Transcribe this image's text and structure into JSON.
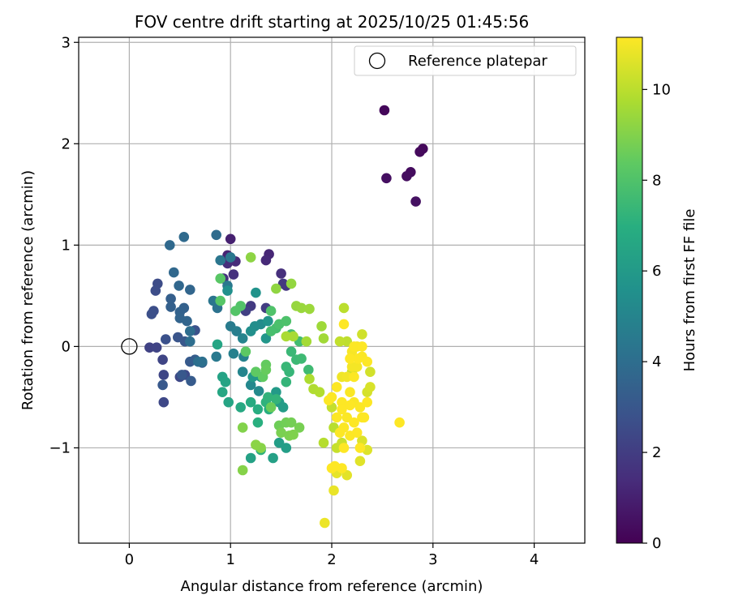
{
  "chart_data": {
    "type": "scatter",
    "title": "FOV centre drift starting at 2025/10/25 01:45:56",
    "xlabel": "Angular distance from reference (arcmin)",
    "ylabel": "Rotation from reference (arcmin)",
    "xlim": [
      -0.5,
      4.5
    ],
    "ylim": [
      -1.94,
      3.05
    ],
    "xticks": [
      0,
      1,
      2,
      3,
      4
    ],
    "yticks": [
      -1,
      0,
      1,
      2,
      3
    ],
    "xtick_labels": [
      "0",
      "1",
      "2",
      "3",
      "4"
    ],
    "ytick_labels": [
      "−1",
      "0",
      "1",
      "2",
      "3"
    ],
    "grid": true,
    "legend": {
      "placement": "top-right",
      "entries": [
        "Reference platepar"
      ]
    },
    "reference_point": {
      "x": 0,
      "y": 0,
      "label": "Reference platepar"
    },
    "colorbar": {
      "label": "Hours from first FF file",
      "min": 0,
      "max": 11.15,
      "ticks": [
        0,
        2,
        4,
        6,
        8,
        10
      ],
      "tick_labels": [
        "0",
        "2",
        "4",
        "6",
        "8",
        "10"
      ],
      "colormap": "viridis"
    },
    "series": [
      {
        "name": "FOV centre drift",
        "points": [
          [
            2.52,
            2.33,
            0.2
          ],
          [
            2.9,
            1.95,
            0.25
          ],
          [
            2.87,
            1.92,
            0.3
          ],
          [
            2.78,
            1.72,
            0.35
          ],
          [
            2.74,
            1.68,
            0.4
          ],
          [
            2.54,
            1.66,
            0.45
          ],
          [
            2.83,
            1.43,
            0.5
          ],
          [
            1.0,
            1.06,
            1.0
          ],
          [
            0.97,
            0.9,
            1.1
          ],
          [
            1.38,
            0.91,
            1.2
          ],
          [
            1.35,
            0.85,
            1.3
          ],
          [
            1.05,
            0.84,
            1.35
          ],
          [
            0.97,
            0.82,
            1.4
          ],
          [
            1.5,
            0.72,
            1.5
          ],
          [
            1.03,
            0.71,
            1.55
          ],
          [
            0.93,
            0.67,
            1.6
          ],
          [
            1.55,
            0.6,
            1.7
          ],
          [
            1.52,
            0.62,
            1.8
          ],
          [
            1.2,
            0.4,
            1.9
          ],
          [
            1.35,
            0.38,
            2.0
          ],
          [
            1.15,
            0.35,
            2.1
          ],
          [
            0.2,
            -0.01,
            2.2
          ],
          [
            0.27,
            -0.01,
            2.25
          ],
          [
            0.33,
            -0.13,
            2.3
          ],
          [
            0.34,
            -0.28,
            2.35
          ],
          [
            0.34,
            -0.55,
            2.4
          ],
          [
            0.5,
            -0.3,
            2.45
          ],
          [
            0.55,
            -0.28,
            2.5
          ],
          [
            0.28,
            0.62,
            2.55
          ],
          [
            0.26,
            0.55,
            2.6
          ],
          [
            0.24,
            0.35,
            2.65
          ],
          [
            0.22,
            0.32,
            2.7
          ],
          [
            0.36,
            0.07,
            2.75
          ],
          [
            0.65,
            0.16,
            2.8
          ],
          [
            0.48,
            0.09,
            2.9
          ],
          [
            0.55,
            0.05,
            3.0
          ],
          [
            0.52,
            -0.28,
            3.05
          ],
          [
            0.33,
            -0.38,
            3.1
          ],
          [
            0.6,
            -0.15,
            3.15
          ],
          [
            0.61,
            -0.34,
            3.2
          ],
          [
            0.65,
            -0.13,
            3.25
          ],
          [
            0.72,
            -0.16,
            3.3
          ],
          [
            0.41,
            0.47,
            3.35
          ],
          [
            0.41,
            0.39,
            3.4
          ],
          [
            0.54,
            0.38,
            3.45
          ],
          [
            0.5,
            0.34,
            3.5
          ],
          [
            0.5,
            0.28,
            3.55
          ],
          [
            0.57,
            0.25,
            3.6
          ],
          [
            0.6,
            0.56,
            3.65
          ],
          [
            0.49,
            0.6,
            3.7
          ],
          [
            0.44,
            0.73,
            3.75
          ],
          [
            0.4,
            1.0,
            3.8
          ],
          [
            0.54,
            1.08,
            3.85
          ],
          [
            0.86,
            1.1,
            3.9
          ],
          [
            0.6,
            0.15,
            3.95
          ],
          [
            0.6,
            0.05,
            4.0
          ],
          [
            0.68,
            -0.15,
            4.05
          ],
          [
            0.72,
            -0.15,
            4.1
          ],
          [
            0.87,
            0.38,
            4.2
          ],
          [
            0.83,
            0.45,
            4.3
          ],
          [
            0.9,
            0.85,
            4.35
          ],
          [
            1.0,
            0.88,
            4.4
          ],
          [
            0.97,
            0.6,
            4.45
          ],
          [
            0.86,
            -0.1,
            4.5
          ],
          [
            1.0,
            0.2,
            4.6
          ],
          [
            1.06,
            0.15,
            4.7
          ],
          [
            1.03,
            -0.07,
            4.8
          ],
          [
            1.13,
            -0.1,
            4.9
          ],
          [
            1.12,
            0.08,
            5.0
          ],
          [
            1.12,
            -0.25,
            5.05
          ],
          [
            1.2,
            -0.38,
            5.15
          ],
          [
            1.28,
            -0.44,
            5.25
          ],
          [
            1.3,
            0.22,
            5.35
          ],
          [
            1.24,
            0.2,
            5.45
          ],
          [
            1.2,
            0.15,
            5.5
          ],
          [
            0.97,
            0.55,
            5.55
          ],
          [
            1.25,
            0.53,
            5.65
          ],
          [
            1.37,
            0.25,
            5.7
          ],
          [
            1.35,
            0.08,
            5.8
          ],
          [
            1.3,
            -0.3,
            5.9
          ],
          [
            1.22,
            -0.3,
            5.95
          ],
          [
            1.45,
            -0.45,
            6.0
          ],
          [
            1.48,
            -0.55,
            6.05
          ],
          [
            1.52,
            -0.6,
            6.1
          ],
          [
            1.48,
            -0.95,
            6.15
          ],
          [
            1.55,
            -1.0,
            6.2
          ],
          [
            1.42,
            -1.1,
            6.3
          ],
          [
            1.2,
            -1.1,
            6.35
          ],
          [
            0.92,
            -0.3,
            6.4
          ],
          [
            0.95,
            -0.35,
            6.45
          ],
          [
            0.98,
            -0.55,
            6.5
          ],
          [
            0.87,
            0.02,
            6.55
          ],
          [
            0.92,
            -0.45,
            6.6
          ],
          [
            1.1,
            -0.6,
            6.7
          ],
          [
            1.2,
            -0.55,
            6.8
          ],
          [
            1.27,
            -0.62,
            6.9
          ],
          [
            1.38,
            -0.62,
            6.95
          ],
          [
            1.27,
            -0.75,
            7.0
          ],
          [
            1.3,
            -1.02,
            7.1
          ],
          [
            1.35,
            -0.55,
            7.15
          ],
          [
            1.37,
            -0.5,
            7.2
          ],
          [
            1.45,
            -0.52,
            7.25
          ],
          [
            1.55,
            -0.35,
            7.3
          ],
          [
            1.58,
            -0.25,
            7.35
          ],
          [
            1.55,
            -0.2,
            7.4
          ],
          [
            1.6,
            -0.05,
            7.45
          ],
          [
            1.65,
            -0.13,
            7.5
          ],
          [
            1.7,
            -0.12,
            7.55
          ],
          [
            1.77,
            -0.23,
            7.6
          ],
          [
            1.68,
            0.05,
            7.65
          ],
          [
            1.6,
            0.12,
            7.7
          ],
          [
            1.45,
            0.18,
            7.75
          ],
          [
            1.4,
            0.15,
            7.8
          ],
          [
            1.48,
            0.22,
            7.9
          ],
          [
            1.55,
            0.25,
            7.95
          ],
          [
            1.4,
            0.35,
            8.0
          ],
          [
            1.1,
            0.4,
            8.05
          ],
          [
            1.05,
            0.35,
            8.1
          ],
          [
            0.9,
            0.45,
            8.15
          ],
          [
            0.9,
            0.67,
            8.2
          ],
          [
            1.15,
            -0.05,
            8.3
          ],
          [
            1.25,
            -0.25,
            8.35
          ],
          [
            1.32,
            -0.3,
            8.4
          ],
          [
            1.35,
            -0.18,
            8.45
          ],
          [
            1.35,
            -0.23,
            8.5
          ],
          [
            1.4,
            -0.6,
            8.6
          ],
          [
            1.48,
            -0.78,
            8.65
          ],
          [
            1.55,
            -0.75,
            8.7
          ],
          [
            1.6,
            -0.75,
            8.75
          ],
          [
            1.68,
            -0.8,
            8.8
          ],
          [
            1.5,
            -0.85,
            8.85
          ],
          [
            1.58,
            -0.88,
            8.9
          ],
          [
            1.62,
            -0.87,
            8.95
          ],
          [
            1.12,
            -0.8,
            9.0
          ],
          [
            1.12,
            -1.22,
            9.05
          ],
          [
            1.3,
            -1.0,
            9.1
          ],
          [
            1.25,
            -0.97,
            9.15
          ],
          [
            1.2,
            0.88,
            9.2
          ],
          [
            1.45,
            0.57,
            9.25
          ],
          [
            1.6,
            0.62,
            9.3
          ],
          [
            1.65,
            0.4,
            9.35
          ],
          [
            1.7,
            0.38,
            9.4
          ],
          [
            1.78,
            0.37,
            9.45
          ],
          [
            1.9,
            0.2,
            9.5
          ],
          [
            1.92,
            0.08,
            9.55
          ],
          [
            1.75,
            0.05,
            9.6
          ],
          [
            1.62,
            0.1,
            9.65
          ],
          [
            1.55,
            0.1,
            9.7
          ],
          [
            1.78,
            -0.32,
            9.75
          ],
          [
            1.82,
            -0.42,
            9.8
          ],
          [
            1.88,
            -0.45,
            9.85
          ],
          [
            1.92,
            -0.95,
            9.9
          ],
          [
            2.02,
            -0.8,
            9.95
          ],
          [
            2.12,
            0.38,
            10.0
          ],
          [
            2.15,
            0.05,
            10.05
          ],
          [
            2.08,
            0.05,
            10.1
          ],
          [
            2.0,
            -0.6,
            10.15
          ],
          [
            2.05,
            -1.0,
            10.2
          ],
          [
            2.1,
            -0.95,
            10.25
          ],
          [
            2.2,
            -0.25,
            10.3
          ],
          [
            2.3,
            0.12,
            10.35
          ],
          [
            2.38,
            -0.25,
            10.4
          ],
          [
            2.35,
            -0.45,
            10.45
          ],
          [
            2.38,
            -0.4,
            10.5
          ],
          [
            2.3,
            -0.93,
            10.55
          ],
          [
            2.35,
            -1.02,
            10.6
          ],
          [
            2.28,
            -1.13,
            10.65
          ],
          [
            2.15,
            -1.27,
            10.7
          ],
          [
            2.05,
            -1.25,
            10.75
          ],
          [
            2.02,
            -1.42,
            10.8
          ],
          [
            1.93,
            -1.74,
            10.85
          ],
          [
            2.1,
            -0.3,
            10.9
          ],
          [
            2.15,
            -0.3,
            10.95
          ],
          [
            2.2,
            -0.2,
            11.0
          ],
          [
            2.25,
            -0.2,
            11.0
          ],
          [
            2.2,
            -0.05,
            11.05
          ],
          [
            2.25,
            0.0,
            11.05
          ],
          [
            2.3,
            -0.1,
            11.1
          ],
          [
            2.18,
            -0.45,
            11.1
          ],
          [
            2.22,
            -0.55,
            11.1
          ],
          [
            2.28,
            -0.6,
            11.12
          ],
          [
            2.3,
            -0.7,
            11.12
          ],
          [
            2.15,
            -0.7,
            11.12
          ],
          [
            2.12,
            -0.8,
            11.12
          ],
          [
            2.18,
            -0.88,
            11.13
          ],
          [
            2.1,
            -0.55,
            11.13
          ],
          [
            2.05,
            -0.7,
            11.13
          ],
          [
            2.08,
            -0.85,
            11.13
          ],
          [
            2.05,
            -0.4,
            11.14
          ],
          [
            2.0,
            -0.5,
            11.14
          ],
          [
            1.97,
            -0.53,
            11.14
          ],
          [
            2.22,
            -0.3,
            11.14
          ],
          [
            2.26,
            -0.12,
            11.14
          ],
          [
            2.22,
            0.0,
            11.14
          ],
          [
            2.12,
            0.22,
            11.15
          ],
          [
            2.3,
            0.0,
            11.15
          ],
          [
            2.35,
            -0.15,
            11.15
          ],
          [
            2.35,
            -0.55,
            11.15
          ],
          [
            2.18,
            -0.58,
            11.15
          ],
          [
            2.22,
            -0.75,
            11.15
          ],
          [
            2.25,
            -0.85,
            11.15
          ],
          [
            2.28,
            -1.0,
            11.15
          ],
          [
            2.12,
            -1.0,
            11.15
          ],
          [
            2.1,
            -1.2,
            11.15
          ],
          [
            2.0,
            -1.2,
            11.15
          ],
          [
            2.03,
            -1.18,
            11.15
          ],
          [
            2.67,
            -0.75,
            11.15
          ],
          [
            2.32,
            -0.7,
            11.15
          ],
          [
            2.18,
            -0.12,
            11.15
          ],
          [
            2.1,
            -0.62,
            11.15
          ]
        ]
      }
    ]
  }
}
